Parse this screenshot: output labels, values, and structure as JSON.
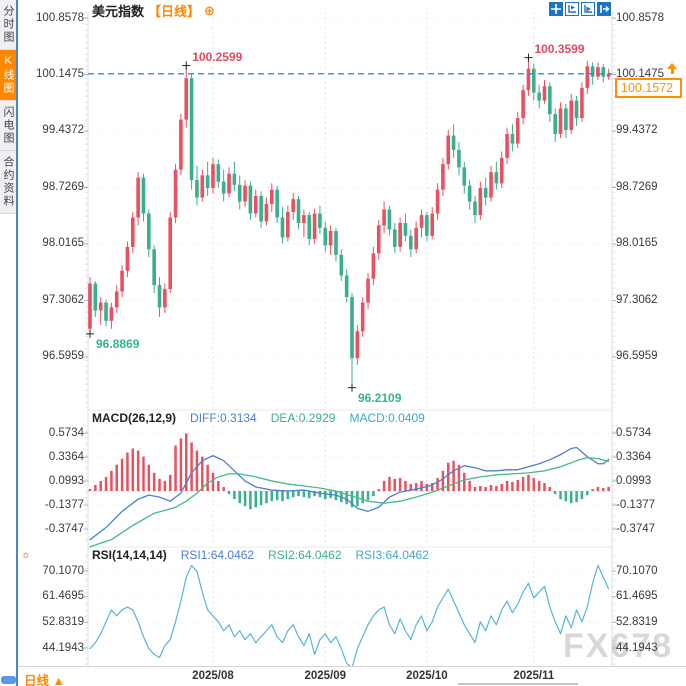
{
  "sidebar": {
    "tabs": [
      {
        "label": "分时图",
        "active": false
      },
      {
        "label": "K线图",
        "active": true
      },
      {
        "label": "闪电图",
        "active": false
      },
      {
        "label": "合约资料",
        "active": false
      }
    ]
  },
  "header": {
    "title": "美元指数",
    "period_tag": "【日线】",
    "add_icon": "⊕"
  },
  "toolbar": {
    "buttons": [
      "crosshair-move",
      "measure-frame",
      "zoom-frame",
      "collapse-right"
    ]
  },
  "price_panel": {
    "axis": [
      "100.8578",
      "100.1475",
      "99.4372",
      "98.7269",
      "98.0165",
      "97.3062",
      "96.5959"
    ],
    "last_price": "100.1572"
  },
  "macd_panel": {
    "name": "MACD(26,12,9)",
    "diff": "DIFF:0.3134",
    "dea": "DEA:0.2929",
    "macd": "MACD:0.0409",
    "axis": [
      "0.5734",
      "0.3364",
      "0.0993",
      "-0.1377",
      "-0.3747"
    ]
  },
  "rsi_panel": {
    "name": "RSI(14,14,14)",
    "rsi1": "RSI1:64.0462",
    "rsi2": "RSI2:64.0462",
    "rsi3": "RSI3:64.0462",
    "axis": [
      "70.1070",
      "61.4695",
      "52.8319",
      "44.1943"
    ],
    "settings_icon": "☼"
  },
  "bottom_bar": {
    "period": "日线",
    "arrow": "▲",
    "dates": [
      "2025/08",
      "2025/09",
      "2025/10",
      "2025/11"
    ]
  },
  "watermark": "FX678",
  "chart_data": {
    "type": "candlestick",
    "symbol": "美元指数",
    "interval": "日线",
    "price_axis_ticks": [
      100.8578,
      100.1475,
      99.4372,
      98.7269,
      98.0165,
      97.3062,
      96.5959
    ],
    "last_price": 100.1572,
    "candles": [
      [
        96.95,
        97.6,
        96.8869,
        97.52
      ],
      [
        97.52,
        97.55,
        97.1,
        97.18
      ],
      [
        97.18,
        97.35,
        97.0,
        97.28
      ],
      [
        97.28,
        97.32,
        96.98,
        97.05
      ],
      [
        97.05,
        97.28,
        96.95,
        97.22
      ],
      [
        97.22,
        97.5,
        97.15,
        97.42
      ],
      [
        97.42,
        97.75,
        97.35,
        97.68
      ],
      [
        97.68,
        98.05,
        97.6,
        97.98
      ],
      [
        97.98,
        98.42,
        97.9,
        98.35
      ],
      [
        98.35,
        98.92,
        98.25,
        98.85
      ],
      [
        98.85,
        98.9,
        98.3,
        98.4
      ],
      [
        98.4,
        98.45,
        97.85,
        97.95
      ],
      [
        97.95,
        98.0,
        97.4,
        97.5
      ],
      [
        97.5,
        97.6,
        97.1,
        97.22
      ],
      [
        97.22,
        97.52,
        97.15,
        97.45
      ],
      [
        97.45,
        98.42,
        97.4,
        98.35
      ],
      [
        98.35,
        99.02,
        98.28,
        98.95
      ],
      [
        98.95,
        99.65,
        98.88,
        99.58
      ],
      [
        99.58,
        100.2599,
        99.48,
        100.1
      ],
      [
        100.1,
        100.16,
        98.7,
        98.82
      ],
      [
        98.82,
        99.0,
        98.5,
        98.6
      ],
      [
        98.6,
        98.95,
        98.55,
        98.88
      ],
      [
        98.88,
        99.05,
        98.62,
        98.72
      ],
      [
        98.72,
        99.1,
        98.65,
        99.02
      ],
      [
        99.02,
        99.08,
        98.72,
        98.8
      ],
      [
        98.8,
        98.95,
        98.55,
        98.65
      ],
      [
        98.65,
        98.98,
        98.6,
        98.9
      ],
      [
        98.9,
        99.05,
        98.68,
        98.76
      ],
      [
        98.76,
        98.88,
        98.45,
        98.55
      ],
      [
        98.55,
        98.82,
        98.48,
        98.75
      ],
      [
        98.75,
        98.8,
        98.32,
        98.4
      ],
      [
        98.4,
        98.7,
        98.35,
        98.62
      ],
      [
        98.62,
        98.68,
        98.22,
        98.3
      ],
      [
        98.3,
        98.6,
        98.25,
        98.52
      ],
      [
        98.52,
        98.78,
        98.42,
        98.7
      ],
      [
        98.7,
        98.75,
        98.28,
        98.35
      ],
      [
        98.35,
        98.48,
        98.02,
        98.1
      ],
      [
        98.1,
        98.5,
        98.05,
        98.42
      ],
      [
        98.42,
        98.66,
        98.32,
        98.58
      ],
      [
        98.58,
        98.62,
        98.2,
        98.28
      ],
      [
        98.28,
        98.45,
        98.1,
        98.38
      ],
      [
        98.38,
        98.42,
        98.0,
        98.08
      ],
      [
        98.08,
        98.46,
        98.02,
        98.4
      ],
      [
        98.4,
        98.5,
        98.14,
        98.22
      ],
      [
        98.22,
        98.3,
        97.92,
        98.0
      ],
      [
        98.0,
        98.25,
        97.88,
        98.18
      ],
      [
        98.18,
        98.22,
        97.8,
        97.88
      ],
      [
        97.88,
        97.95,
        97.55,
        97.62
      ],
      [
        97.62,
        97.7,
        97.28,
        97.35
      ],
      [
        97.35,
        97.4,
        96.2109,
        96.58
      ],
      [
        96.58,
        97.0,
        96.5,
        96.92
      ],
      [
        96.92,
        97.35,
        96.85,
        97.28
      ],
      [
        97.28,
        97.65,
        97.2,
        97.58
      ],
      [
        97.58,
        97.98,
        97.5,
        97.9
      ],
      [
        97.9,
        98.32,
        97.82,
        98.25
      ],
      [
        98.25,
        98.55,
        98.15,
        98.45
      ],
      [
        98.45,
        98.5,
        98.12,
        98.2
      ],
      [
        98.2,
        98.28,
        97.9,
        97.98
      ],
      [
        97.98,
        98.35,
        97.92,
        98.28
      ],
      [
        98.28,
        98.4,
        98.05,
        98.12
      ],
      [
        98.12,
        98.2,
        97.85,
        97.95
      ],
      [
        97.95,
        98.3,
        97.9,
        98.22
      ],
      [
        98.22,
        98.45,
        98.1,
        98.38
      ],
      [
        98.38,
        98.42,
        98.05,
        98.12
      ],
      [
        98.12,
        98.48,
        98.08,
        98.4
      ],
      [
        98.4,
        98.78,
        98.32,
        98.7
      ],
      [
        98.7,
        99.1,
        98.62,
        99.02
      ],
      [
        99.02,
        99.45,
        98.95,
        99.38
      ],
      [
        99.38,
        99.52,
        99.1,
        99.2
      ],
      [
        99.2,
        99.3,
        98.88,
        98.98
      ],
      [
        98.98,
        99.05,
        98.65,
        98.75
      ],
      [
        98.75,
        98.82,
        98.45,
        98.55
      ],
      [
        98.55,
        98.62,
        98.28,
        98.38
      ],
      [
        98.38,
        98.8,
        98.32,
        98.72
      ],
      [
        98.72,
        98.85,
        98.5,
        98.6
      ],
      [
        98.6,
        99.0,
        98.55,
        98.92
      ],
      [
        98.92,
        99.05,
        98.7,
        98.78
      ],
      [
        98.78,
        99.18,
        98.72,
        99.1
      ],
      [
        99.1,
        99.48,
        99.02,
        99.4
      ],
      [
        99.4,
        99.52,
        99.18,
        99.28
      ],
      [
        99.28,
        99.68,
        99.22,
        99.6
      ],
      [
        99.6,
        100.02,
        99.52,
        99.95
      ],
      [
        99.95,
        100.3599,
        99.88,
        100.22
      ],
      [
        100.22,
        100.28,
        99.82,
        99.92
      ],
      [
        99.92,
        100.02,
        99.72,
        99.82
      ],
      [
        99.82,
        100.08,
        99.78,
        100.0
      ],
      [
        100.0,
        100.05,
        99.55,
        99.65
      ],
      [
        99.65,
        99.72,
        99.3,
        99.4
      ],
      [
        99.4,
        99.8,
        99.35,
        99.72
      ],
      [
        99.72,
        99.78,
        99.35,
        99.45
      ],
      [
        99.45,
        99.9,
        99.4,
        99.82
      ],
      [
        99.82,
        99.88,
        99.5,
        99.6
      ],
      [
        99.6,
        100.05,
        99.55,
        99.98
      ],
      [
        99.98,
        100.32,
        99.9,
        100.25
      ],
      [
        100.25,
        100.3,
        100.02,
        100.12
      ],
      [
        100.12,
        100.3,
        100.08,
        100.24
      ],
      [
        100.24,
        100.28,
        100.05,
        100.12
      ],
      [
        100.12,
        100.22,
        100.08,
        100.1572
      ]
    ],
    "annotations": [
      {
        "name": "high-aug",
        "text": "100.2599",
        "index": 18,
        "price": 100.2599,
        "color": "#e8485f",
        "side": "above"
      },
      {
        "name": "high-nov",
        "text": "100.3599",
        "index": 82,
        "price": 100.3599,
        "color": "#e8485f",
        "side": "above"
      },
      {
        "name": "low-jul",
        "text": "96.8869",
        "index": 0,
        "price": 96.8869,
        "color": "#36b292",
        "side": "below"
      },
      {
        "name": "low-sep",
        "text": "96.2109",
        "index": 49,
        "price": 96.2109,
        "color": "#36b292",
        "side": "below"
      }
    ],
    "month_tick_indices": [
      23,
      44,
      63,
      83
    ],
    "macd": {
      "axis_ticks": [
        0.5734,
        0.3364,
        0.0993,
        -0.1377,
        -0.3747
      ],
      "hist": [
        0.02,
        0.06,
        0.1,
        0.14,
        0.2,
        0.26,
        0.32,
        0.38,
        0.42,
        0.4,
        0.34,
        0.26,
        0.18,
        0.12,
        0.1,
        0.16,
        0.45,
        0.52,
        0.57,
        0.48,
        0.4,
        0.34,
        0.26,
        0.18,
        0.1,
        0.04,
        -0.03,
        -0.08,
        -0.12,
        -0.15,
        -0.18,
        -0.16,
        -0.14,
        -0.12,
        -0.1,
        -0.09,
        -0.1,
        -0.08,
        -0.06,
        -0.05,
        -0.06,
        -0.07,
        -0.05,
        -0.06,
        -0.08,
        -0.07,
        -0.09,
        -0.11,
        -0.13,
        -0.16,
        -0.15,
        -0.12,
        -0.09,
        -0.05,
        0.02,
        0.1,
        0.14,
        0.12,
        0.13,
        0.1,
        0.07,
        0.08,
        0.1,
        0.07,
        0.08,
        0.13,
        0.2,
        0.28,
        0.3,
        0.26,
        0.18,
        0.1,
        0.04,
        0.05,
        0.04,
        0.06,
        0.05,
        0.07,
        0.1,
        0.09,
        0.11,
        0.14,
        0.16,
        0.13,
        0.1,
        0.08,
        0.04,
        -0.03,
        -0.08,
        -0.1,
        -0.12,
        -0.11,
        -0.08,
        -0.04,
        0.02,
        0.04,
        0.03,
        0.0409
      ],
      "diff_points": [
        [
          0,
          -0.48
        ],
        [
          3,
          -0.36
        ],
        [
          6,
          -0.2
        ],
        [
          9,
          -0.08
        ],
        [
          11,
          -0.04
        ],
        [
          13,
          -0.06
        ],
        [
          15,
          -0.1
        ],
        [
          17,
          -0.02
        ],
        [
          19,
          0.18
        ],
        [
          21,
          0.3
        ],
        [
          23,
          0.35
        ],
        [
          25,
          0.3
        ],
        [
          27,
          0.2
        ],
        [
          29,
          0.1
        ],
        [
          31,
          0.04
        ],
        [
          34,
          0.01
        ],
        [
          37,
          0.0
        ],
        [
          40,
          0.01
        ],
        [
          43,
          -0.02
        ],
        [
          46,
          -0.04
        ],
        [
          48,
          -0.08
        ],
        [
          50,
          -0.17
        ],
        [
          52,
          -0.2
        ],
        [
          54,
          -0.16
        ],
        [
          56,
          -0.06
        ],
        [
          58,
          -0.01
        ],
        [
          60,
          0.01
        ],
        [
          62,
          0.03
        ],
        [
          64,
          0.06
        ],
        [
          66,
          0.12
        ],
        [
          68,
          0.2
        ],
        [
          70,
          0.25
        ],
        [
          72,
          0.23
        ],
        [
          74,
          0.2
        ],
        [
          76,
          0.2
        ],
        [
          78,
          0.21
        ],
        [
          80,
          0.21
        ],
        [
          82,
          0.24
        ],
        [
          84,
          0.27
        ],
        [
          86,
          0.31
        ],
        [
          88,
          0.36
        ],
        [
          90,
          0.42
        ],
        [
          91,
          0.43
        ],
        [
          93,
          0.34
        ],
        [
          95,
          0.27
        ],
        [
          96,
          0.27
        ],
        [
          97,
          0.3134
        ]
      ],
      "dea_points": [
        [
          0,
          -0.55
        ],
        [
          4,
          -0.48
        ],
        [
          8,
          -0.34
        ],
        [
          12,
          -0.22
        ],
        [
          16,
          -0.16
        ],
        [
          18,
          -0.1
        ],
        [
          20,
          -0.02
        ],
        [
          22,
          0.08
        ],
        [
          24,
          0.14
        ],
        [
          26,
          0.17
        ],
        [
          28,
          0.17
        ],
        [
          31,
          0.14
        ],
        [
          34,
          0.1
        ],
        [
          37,
          0.07
        ],
        [
          40,
          0.05
        ],
        [
          43,
          0.03
        ],
        [
          46,
          0.0
        ],
        [
          49,
          -0.05
        ],
        [
          52,
          -0.1
        ],
        [
          55,
          -0.12
        ],
        [
          58,
          -0.1
        ],
        [
          61,
          -0.06
        ],
        [
          64,
          -0.01
        ],
        [
          67,
          0.05
        ],
        [
          70,
          0.11
        ],
        [
          73,
          0.14
        ],
        [
          76,
          0.16
        ],
        [
          79,
          0.17
        ],
        [
          82,
          0.18
        ],
        [
          85,
          0.2
        ],
        [
          88,
          0.24
        ],
        [
          91,
          0.3
        ],
        [
          93,
          0.33
        ],
        [
          95,
          0.32
        ],
        [
          97,
          0.2929
        ]
      ]
    },
    "rsi": {
      "axis_ticks": [
        70.107,
        61.4695,
        52.8319,
        44.1943
      ],
      "values": [
        44,
        46,
        49,
        53,
        57,
        55,
        57,
        58,
        57,
        53,
        48,
        44,
        42,
        41,
        45,
        47,
        53,
        60,
        68,
        72,
        70,
        63,
        57,
        55,
        53,
        50,
        52,
        48,
        50,
        47,
        49,
        46,
        48,
        50,
        52,
        48,
        46,
        50,
        52,
        48,
        45,
        49,
        42,
        47,
        49,
        46,
        48,
        44,
        39,
        37,
        44,
        48,
        52,
        55,
        57,
        58,
        52,
        49,
        54,
        50,
        47,
        52,
        55,
        50,
        53,
        58,
        61,
        64,
        60,
        56,
        52,
        49,
        46,
        53,
        50,
        55,
        52,
        57,
        60,
        56,
        59,
        63,
        66,
        61,
        63,
        65,
        58,
        53,
        49,
        55,
        51,
        57,
        53,
        58,
        66,
        72,
        68,
        64.0462
      ]
    },
    "colors": {
      "up": "#e8515f",
      "down": "#3aae8d",
      "diff_line": "#4a7fd4",
      "dea_line": "#45b98c",
      "rsi_line": "#57b4d9",
      "dashed_price_line": "#1f86e0",
      "accent_orange": "#ff8800"
    }
  }
}
